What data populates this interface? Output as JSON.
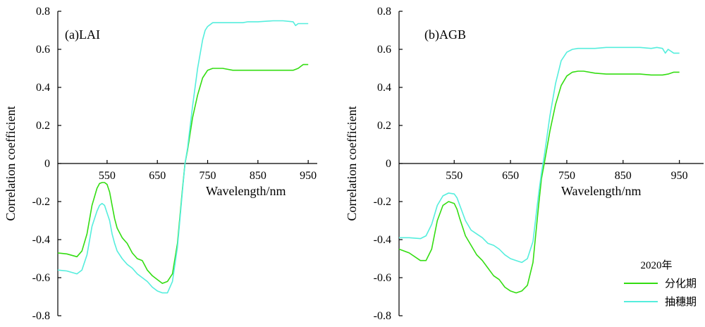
{
  "chart_data": [
    {
      "type": "line",
      "panel_label": "(a)LAI",
      "xlabel": "Wavelength/nm",
      "ylabel": "Correlation coefficient",
      "xlim": [
        452,
        968
      ],
      "ylim": [
        -0.8,
        0.8
      ],
      "xticks": [
        550,
        650,
        750,
        850,
        950
      ],
      "yticks": [
        "-0.8",
        "-0.6",
        "-0.4",
        "-0.2",
        "0",
        "0.2",
        "0.4",
        "0.6",
        "0.8"
      ],
      "series": [
        {
          "name": "分化期",
          "color": "#33dd11",
          "x": [
            452,
            470,
            490,
            500,
            510,
            520,
            530,
            535,
            540,
            545,
            550,
            555,
            560,
            565,
            570,
            580,
            590,
            600,
            610,
            620,
            630,
            640,
            650,
            660,
            670,
            680,
            690,
            700,
            705,
            710,
            720,
            730,
            740,
            750,
            760,
            770,
            780,
            800,
            820,
            850,
            880,
            900,
            920,
            930,
            940,
            950
          ],
          "y": [
            -0.47,
            -0.475,
            -0.49,
            -0.46,
            -0.37,
            -0.22,
            -0.13,
            -0.105,
            -0.1,
            -0.1,
            -0.11,
            -0.15,
            -0.22,
            -0.29,
            -0.34,
            -0.39,
            -0.42,
            -0.47,
            -0.5,
            -0.51,
            -0.56,
            -0.59,
            -0.61,
            -0.63,
            -0.62,
            -0.58,
            -0.42,
            -0.13,
            0.0,
            0.07,
            0.24,
            0.36,
            0.45,
            0.49,
            0.5,
            0.5,
            0.5,
            0.49,
            0.49,
            0.49,
            0.49,
            0.49,
            0.49,
            0.5,
            0.52,
            0.52
          ]
        },
        {
          "name": "抽穗期",
          "color": "#55eedd",
          "x": [
            452,
            470,
            490,
            500,
            510,
            520,
            530,
            535,
            540,
            545,
            550,
            555,
            560,
            565,
            570,
            580,
            590,
            600,
            610,
            620,
            630,
            640,
            650,
            660,
            670,
            680,
            690,
            700,
            705,
            710,
            720,
            730,
            740,
            745,
            750,
            760,
            770,
            780,
            800,
            820,
            830,
            850,
            880,
            900,
            920,
            925,
            930,
            940,
            950
          ],
          "y": [
            -0.56,
            -0.565,
            -0.58,
            -0.56,
            -0.48,
            -0.33,
            -0.25,
            -0.22,
            -0.21,
            -0.22,
            -0.26,
            -0.3,
            -0.37,
            -0.42,
            -0.46,
            -0.5,
            -0.53,
            -0.55,
            -0.58,
            -0.6,
            -0.62,
            -0.65,
            -0.67,
            -0.68,
            -0.68,
            -0.62,
            -0.44,
            -0.14,
            0.0,
            0.08,
            0.3,
            0.5,
            0.65,
            0.7,
            0.72,
            0.74,
            0.74,
            0.74,
            0.74,
            0.74,
            0.745,
            0.745,
            0.75,
            0.75,
            0.745,
            0.725,
            0.735,
            0.735,
            0.735
          ]
        }
      ]
    },
    {
      "type": "line",
      "panel_label": "(b)AGB",
      "xlabel": "Wavelength/nm",
      "ylabel": "Correlation coefficient",
      "xlim": [
        452,
        993
      ],
      "ylim": [
        -0.8,
        0.8
      ],
      "xticks": [
        550,
        650,
        750,
        850,
        950
      ],
      "yticks": [
        "-0.8",
        "-0.6",
        "-0.4",
        "-0.2",
        "0",
        "0.2",
        "0.4",
        "0.6",
        "0.8"
      ],
      "legend": {
        "title": "2020年",
        "placement": "bottom-right"
      },
      "series": [
        {
          "name": "分化期",
          "color": "#33dd11",
          "x": [
            452,
            470,
            490,
            500,
            510,
            520,
            530,
            540,
            550,
            555,
            560,
            570,
            580,
            590,
            600,
            610,
            620,
            630,
            640,
            650,
            660,
            670,
            680,
            690,
            700,
            705,
            710,
            720,
            730,
            740,
            750,
            760,
            770,
            780,
            800,
            820,
            850,
            880,
            900,
            920,
            930,
            940,
            950
          ],
          "y": [
            -0.45,
            -0.47,
            -0.51,
            -0.51,
            -0.45,
            -0.3,
            -0.22,
            -0.2,
            -0.21,
            -0.24,
            -0.29,
            -0.38,
            -0.43,
            -0.48,
            -0.51,
            -0.55,
            -0.59,
            -0.61,
            -0.65,
            -0.67,
            -0.68,
            -0.67,
            -0.64,
            -0.52,
            -0.22,
            -0.08,
            0.0,
            0.17,
            0.31,
            0.41,
            0.46,
            0.48,
            0.485,
            0.485,
            0.475,
            0.47,
            0.47,
            0.47,
            0.465,
            0.465,
            0.47,
            0.48,
            0.48
          ]
        },
        {
          "name": "抽穗期",
          "color": "#55eedd",
          "x": [
            452,
            470,
            490,
            500,
            510,
            520,
            530,
            540,
            550,
            555,
            560,
            570,
            580,
            590,
            600,
            610,
            620,
            630,
            640,
            650,
            660,
            670,
            680,
            690,
            700,
            705,
            710,
            720,
            730,
            740,
            750,
            760,
            770,
            780,
            800,
            820,
            850,
            880,
            900,
            910,
            920,
            925,
            930,
            940,
            950
          ],
          "y": [
            -0.39,
            -0.39,
            -0.395,
            -0.38,
            -0.32,
            -0.22,
            -0.17,
            -0.155,
            -0.16,
            -0.18,
            -0.22,
            -0.3,
            -0.35,
            -0.37,
            -0.39,
            -0.42,
            -0.43,
            -0.45,
            -0.48,
            -0.5,
            -0.51,
            -0.52,
            -0.5,
            -0.41,
            -0.16,
            -0.05,
            0.04,
            0.25,
            0.42,
            0.54,
            0.585,
            0.6,
            0.605,
            0.605,
            0.605,
            0.61,
            0.61,
            0.61,
            0.605,
            0.61,
            0.605,
            0.58,
            0.6,
            0.58,
            0.58
          ]
        }
      ]
    }
  ]
}
